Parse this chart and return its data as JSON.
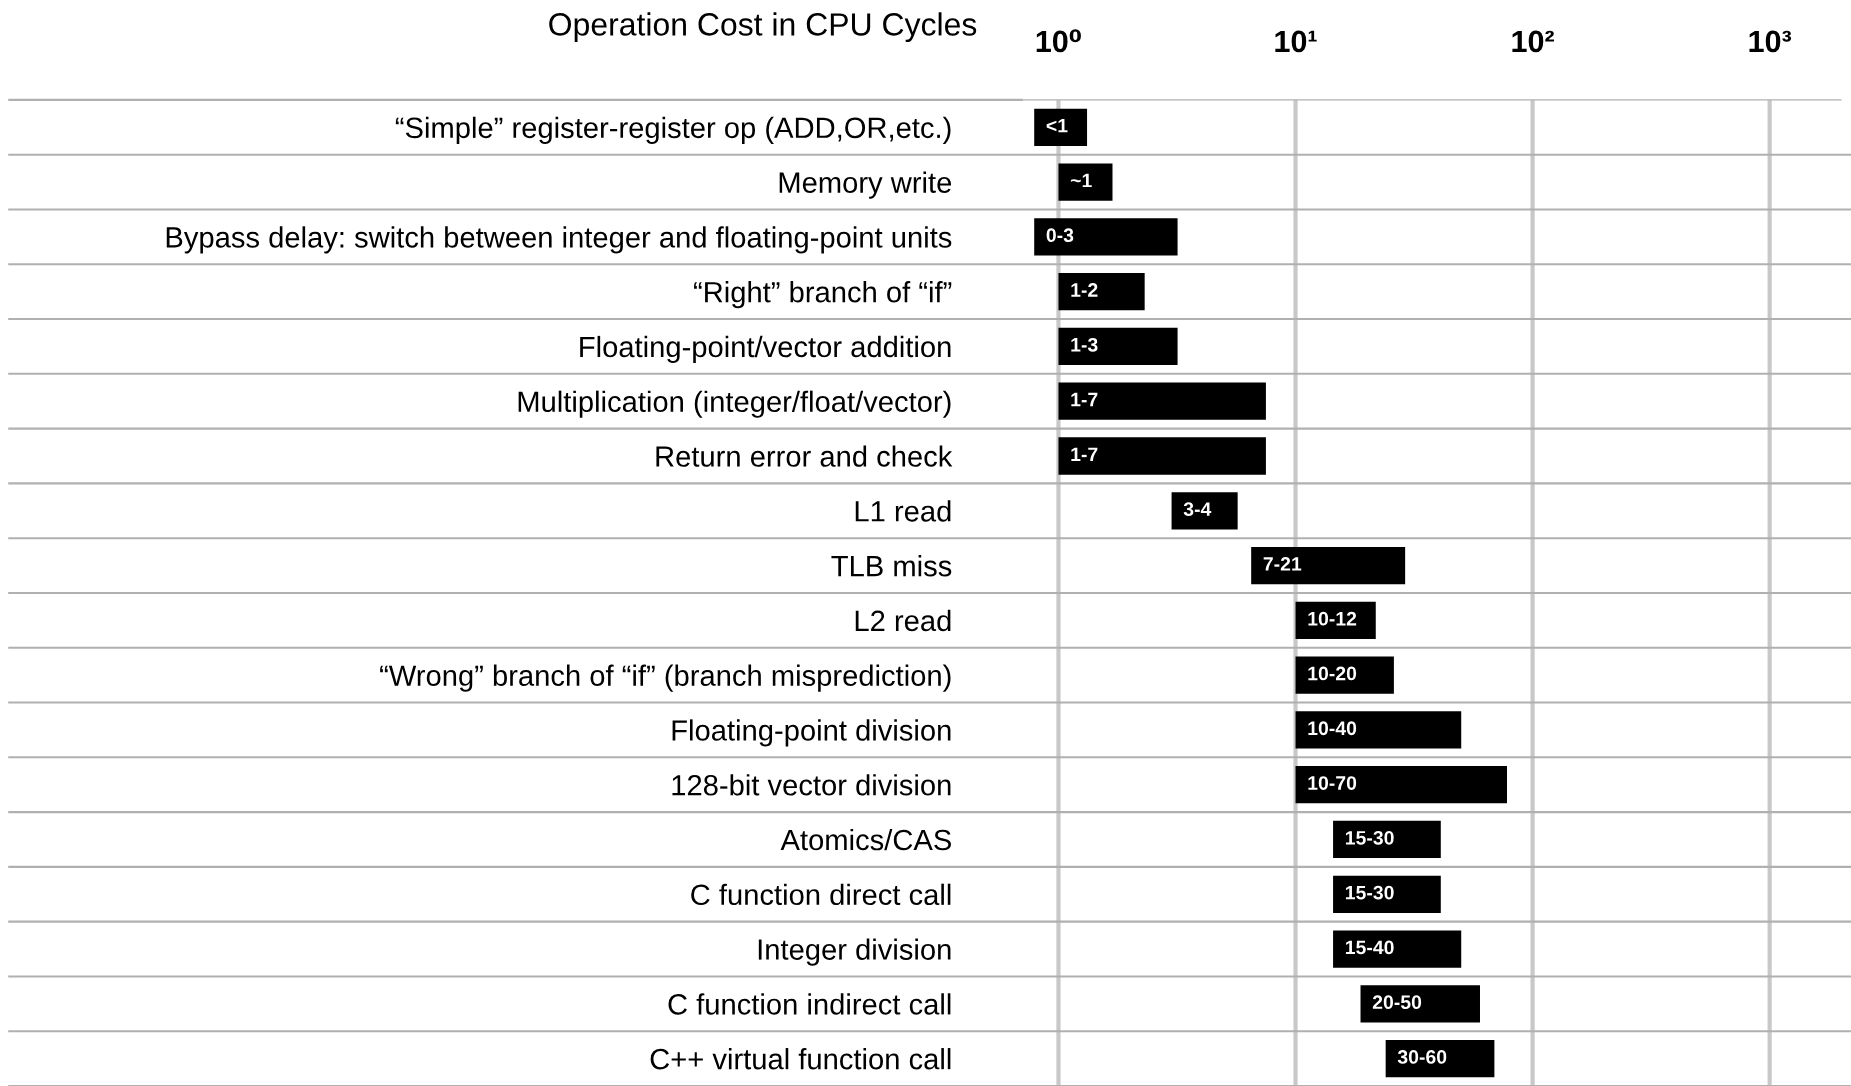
{
  "chart_data": {
    "type": "bar",
    "orientation": "horizontal",
    "title": "Operation Cost in CPU Cycles",
    "categories": [
      "“Simple” register-register op (ADD,OR,etc.)",
      "Memory write",
      "Bypass delay: switch between integer and floating-point units",
      "“Right” branch of “if”",
      "Floating-point/vector addition",
      "Multiplication (integer/float/vector)",
      "Return error and check",
      "L1 read",
      "TLB miss",
      "L2 read",
      "“Wrong” branch of “if” (branch misprediction)",
      "Floating-point division",
      "128-bit vector division",
      "Atomics/CAS",
      "C function direct call",
      "Integer division",
      "C function indirect call",
      "C++ virtual function call"
    ],
    "base": [
      0.79,
      1.0,
      0.79,
      1.0,
      1.0,
      1.0,
      1.0,
      3.0,
      6.5,
      10,
      10,
      10,
      10,
      14.4,
      14.4,
      14.4,
      18.8,
      24
    ],
    "values": [
      0.53,
      0.69,
      2.39,
      1.31,
      2.18,
      6.5,
      6.5,
      2.7,
      22.5,
      11.8,
      16,
      40,
      68,
      26.6,
      26.6,
      35.6,
      41.2,
      45
    ],
    "value_labels": [
      "<1",
      "~1",
      "0-3",
      "1-2",
      "1-3",
      "1-7",
      "1-7",
      "3-4",
      "7-21",
      "10-12",
      "10-20",
      "10-40",
      "10-70",
      "15-30",
      "15-30",
      "15-40",
      "20-50",
      "30-60"
    ],
    "color": "#000000",
    "log": "x",
    "xlim": [
      0.7,
      2000
    ],
    "xticks": [
      {
        "value": 1,
        "label": "10⁰"
      },
      {
        "value": 10,
        "label": "10¹"
      },
      {
        "value": 100,
        "label": "10²"
      },
      {
        "value": 1000,
        "label": "10³"
      }
    ],
    "grid": "x"
  }
}
